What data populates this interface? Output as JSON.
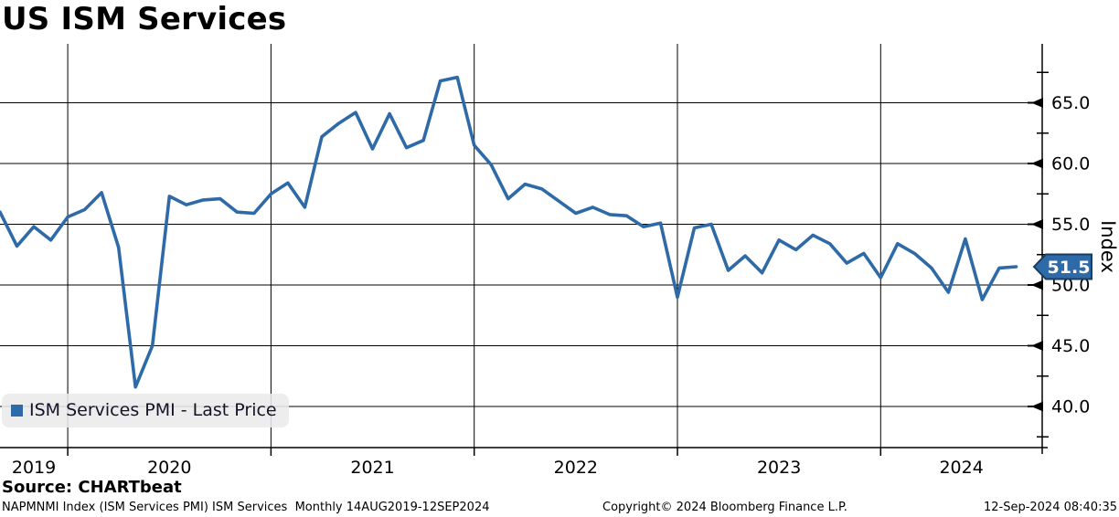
{
  "title": "US ISM Services",
  "source": "Source: CHARTbeat",
  "legend": {
    "label": "ISM Services PMI - Last Price"
  },
  "y_axis": {
    "title": "Index"
  },
  "footer": {
    "security": "NAPMNMI Index (ISM Services PMI) ISM Services  Monthly 14AUG2019-12SEP2024",
    "copyright": "Copyright© 2024 Bloomberg Finance L.P.",
    "timestamp": "12-Sep-2024 08:40:35"
  },
  "last_price_tag": {
    "value": "51.5"
  },
  "colors": {
    "line": "#2e6aa8",
    "tag_fill": "#2e6aa8",
    "tag_border": "#1c3c5e",
    "tag_text": "#ffffff",
    "grid": "#000000",
    "legend_bg": "#ebebeb"
  },
  "chart_data": {
    "type": "line",
    "title": "US ISM Services",
    "ylabel": "Index",
    "series_name": "ISM Services PMI - Last Price",
    "frequency": "Monthly",
    "period": "14AUG2019-12SEP2024",
    "x": [
      "2019-08",
      "2019-09",
      "2019-10",
      "2019-11",
      "2019-12",
      "2020-01",
      "2020-02",
      "2020-03",
      "2020-04",
      "2020-05",
      "2020-06",
      "2020-07",
      "2020-08",
      "2020-09",
      "2020-10",
      "2020-11",
      "2020-12",
      "2021-01",
      "2021-02",
      "2021-03",
      "2021-04",
      "2021-05",
      "2021-06",
      "2021-07",
      "2021-08",
      "2021-09",
      "2021-10",
      "2021-11",
      "2021-12",
      "2022-01",
      "2022-02",
      "2022-03",
      "2022-04",
      "2022-05",
      "2022-06",
      "2022-07",
      "2022-08",
      "2022-09",
      "2022-10",
      "2022-11",
      "2022-12",
      "2023-01",
      "2023-02",
      "2023-03",
      "2023-04",
      "2023-05",
      "2023-06",
      "2023-07",
      "2023-08",
      "2023-09",
      "2023-10",
      "2023-11",
      "2023-12",
      "2024-01",
      "2024-02",
      "2024-03",
      "2024-04",
      "2024-05",
      "2024-06",
      "2024-07",
      "2024-08"
    ],
    "values": [
      56.0,
      53.2,
      54.8,
      53.7,
      55.6,
      56.2,
      57.6,
      53.1,
      41.6,
      45.0,
      57.3,
      56.6,
      57.0,
      57.1,
      56.0,
      55.9,
      57.5,
      58.4,
      56.4,
      62.2,
      63.3,
      64.2,
      61.2,
      64.1,
      61.3,
      61.9,
      66.8,
      67.1,
      61.5,
      59.9,
      57.1,
      58.3,
      57.9,
      56.9,
      55.9,
      56.4,
      55.8,
      55.7,
      54.8,
      55.1,
      49.0,
      54.7,
      55.0,
      51.2,
      52.4,
      51.0,
      53.7,
      52.9,
      54.1,
      53.4,
      51.8,
      52.6,
      50.6,
      53.4,
      52.6,
      51.4,
      49.4,
      53.8,
      48.8,
      51.4,
      51.5
    ],
    "last_value": 51.5,
    "ylim": [
      36,
      70
    ],
    "y_major_ticks": [
      40,
      45,
      50,
      55,
      60,
      65
    ],
    "y_minor_ticks": [
      37.5,
      42.5,
      47.5,
      52.5,
      57.5,
      62.5,
      67.5
    ],
    "y_tick_format": "one_decimal",
    "x_year_labels": [
      "2019",
      "2020",
      "2021",
      "2022",
      "2023",
      "2024"
    ],
    "grid": true,
    "legend_position": "bottom-left"
  }
}
